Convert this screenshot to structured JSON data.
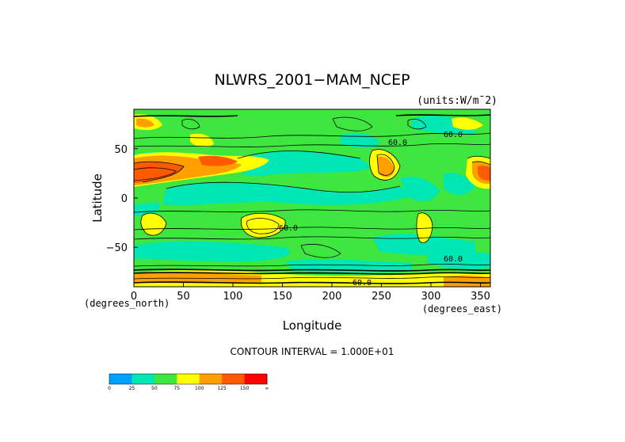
{
  "chart_data": {
    "type": "heatmap",
    "title": "NLWRS_2001−MAM_NCEP",
    "units": "(units:W/m¯2)",
    "xlabel": "Longitude",
    "ylabel": "Latitude",
    "x_unit_label": "(degrees_east)",
    "y_unit_label": "(degrees_north)",
    "xlim": [
      0,
      360
    ],
    "ylim": [
      -90,
      90
    ],
    "x_ticks": [
      "0",
      "50",
      "100",
      "150",
      "200",
      "250",
      "300",
      "350"
    ],
    "y_ticks": [
      "50",
      "0",
      "−50"
    ],
    "contour_interval_text": "CONTOUR INTERVAL = 1.000E+01",
    "contour_labels": [
      "60.0",
      "60.0",
      "60.0",
      "60.0",
      "60.0"
    ],
    "colorbar": {
      "levels": [
        "0",
        "25",
        "50",
        "75",
        "100",
        "125",
        "150",
        "∞"
      ],
      "colors": [
        "#00a0ff",
        "#00e6b4",
        "#40e640",
        "#ffff00",
        "#ffa000",
        "#ff5a00",
        "#ff0000"
      ]
    },
    "palette": {
      "background_field": "#40e640",
      "low": "#00e6b4",
      "high": "#ffff00",
      "higher": "#ffa000",
      "highest": "#ff5a00"
    }
  }
}
